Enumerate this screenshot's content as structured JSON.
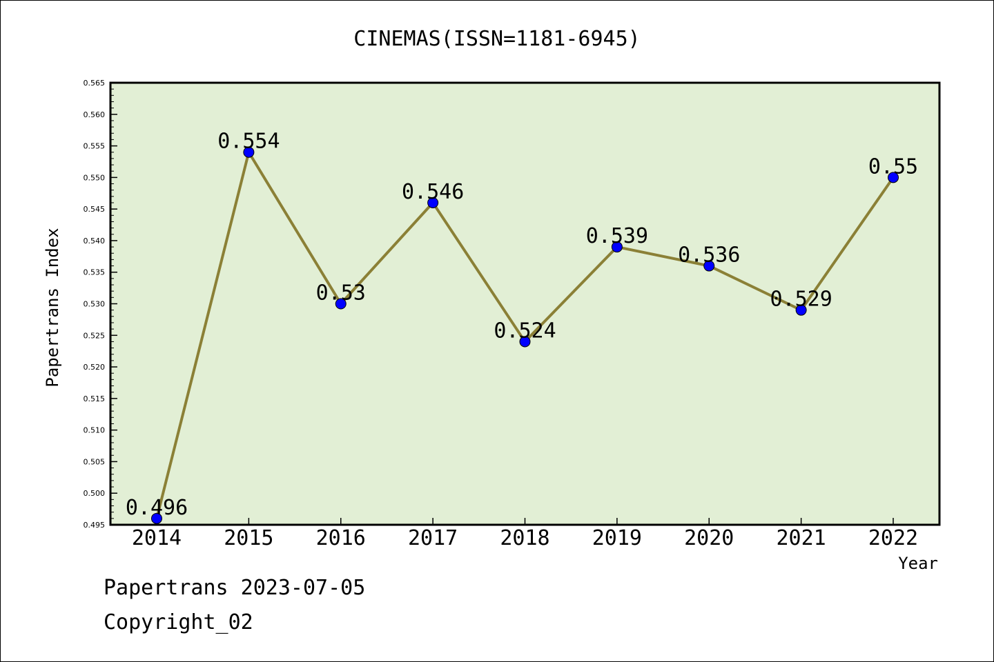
{
  "chart_data": {
    "type": "line",
    "title": "CINEMAS(ISSN=1181-6945)",
    "xlabel": "Year",
    "ylabel": "Papertrans Index",
    "categories": [
      "2014",
      "2015",
      "2016",
      "2017",
      "2018",
      "2019",
      "2020",
      "2021",
      "2022"
    ],
    "series": [
      {
        "values": [
          0.496,
          0.554,
          0.53,
          0.546,
          0.524,
          0.539,
          0.536,
          0.529,
          0.55
        ],
        "data_labels": [
          "0.496",
          "0.554",
          "0.53",
          "0.546",
          "0.524",
          "0.539",
          "0.536",
          "0.529",
          "0.55"
        ]
      }
    ],
    "ylim": [
      0.495,
      0.565
    ],
    "yticks": [
      "0.495",
      "0.500",
      "0.505",
      "0.510",
      "0.515",
      "0.520",
      "0.525",
      "0.530",
      "0.535",
      "0.540",
      "0.545",
      "0.550",
      "0.555",
      "0.560",
      "0.565"
    ],
    "grid": false,
    "legend": "none",
    "colors": {
      "plot_background": "#e2efd5",
      "line": "#8b8036",
      "marker": "#0000ff"
    }
  },
  "footer": {
    "date_line": "Papertrans 2023-07-05",
    "copyright_line": "Copyright_02"
  }
}
